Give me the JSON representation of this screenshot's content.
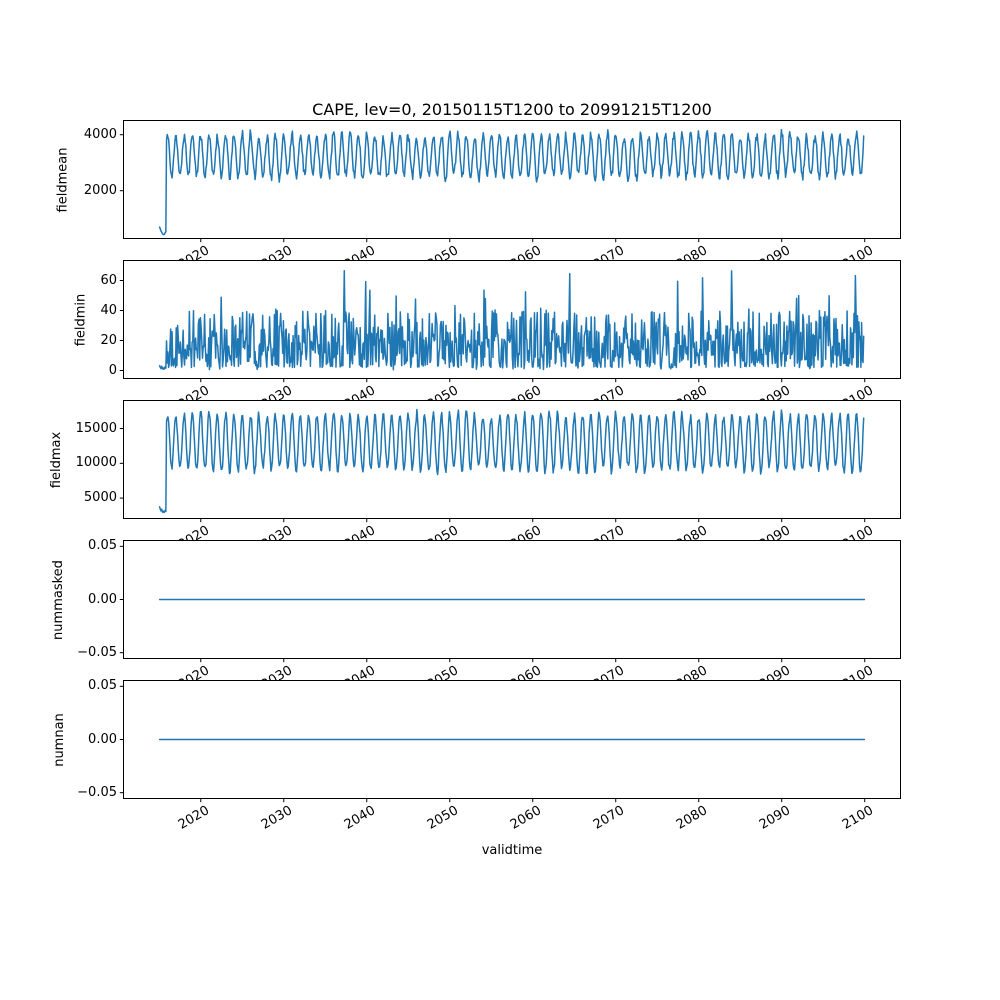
{
  "chart_data": {
    "type": "line",
    "title": "CAPE, lev=0, 20150115T1200 to 20991215T1200",
    "xlabel": "validtime",
    "line_color": "#1f77b4",
    "background_color": "#ffffff",
    "spine_color": "#000000",
    "x_start": 2015.042,
    "x_end": 2099.958,
    "xlim": [
      2010.75,
      2104.25
    ],
    "xticks": [
      2020,
      2030,
      2040,
      2050,
      2060,
      2070,
      2080,
      2090,
      2100
    ],
    "xtick_labels": [
      "2020",
      "2030",
      "2040",
      "2050",
      "2060",
      "2070",
      "2080",
      "2090",
      "2100"
    ],
    "xtick_rotation_deg": 30,
    "samples_per_year": 12,
    "grid": false,
    "legend": "none",
    "subplots": [
      {
        "name": "fieldmean",
        "ylabel": "fieldmean",
        "yticks": [
          2000,
          4000
        ],
        "ytick_labels": [
          "2000",
          "4000"
        ],
        "ylim": [
          310,
          4490
        ],
        "summary": "Annual oscillation between roughly 2450 and 4250 from 2016 to 2100, after an initial spin-up dip from ~700 down to ~430 during 2015",
        "intro_points": [
          [
            2015.042,
            700
          ],
          [
            2015.125,
            630
          ],
          [
            2015.208,
            560
          ],
          [
            2015.292,
            520
          ],
          [
            2015.375,
            470
          ],
          [
            2015.458,
            440
          ],
          [
            2015.542,
            430
          ],
          [
            2015.625,
            445
          ],
          [
            2015.708,
            500
          ],
          [
            2015.792,
            540
          ]
        ],
        "synth": {
          "kind": "seasonal",
          "seed": 11,
          "start": 2015.875,
          "end": 2099.958,
          "mid": 3250,
          "amp": 750,
          "amp_jitter": 0.1,
          "mid_jitter": 0.02,
          "noise": 150
        }
      },
      {
        "name": "fieldmin",
        "ylabel": "fieldmin",
        "yticks": [
          0,
          20,
          40,
          60
        ],
        "ytick_labels": [
          "0",
          "20",
          "40",
          "60"
        ],
        "ylim": [
          -5,
          73
        ],
        "summary": "Noisy monthly values mostly between 2 and 45 with sporadic spikes up to ~70; starts near 1-3 during 2015",
        "intro_points": [
          [
            2015.042,
            3.2
          ],
          [
            2015.125,
            2.1
          ],
          [
            2015.208,
            1.2
          ],
          [
            2015.292,
            2.8
          ],
          [
            2015.375,
            1.5
          ],
          [
            2015.458,
            0.8
          ],
          [
            2015.542,
            1.8
          ],
          [
            2015.625,
            1.0
          ],
          [
            2015.708,
            2.5
          ],
          [
            2015.792,
            1.6
          ]
        ],
        "synth": {
          "kind": "noisy",
          "seed": 22,
          "start": 2015.875,
          "end": 2099.958,
          "base": 2,
          "spread": 38,
          "spike_prob": 0.05,
          "spike_min": 10,
          "spike_max": 32,
          "dip_prob": 0.012,
          "max": 70
        }
      },
      {
        "name": "fieldmax",
        "ylabel": "fieldmax",
        "yticks": [
          5000,
          10000,
          15000
        ],
        "ytick_labels": [
          "5000",
          "10000",
          "15000"
        ],
        "ylim": [
          2140,
          18960
        ],
        "summary": "Annual oscillation between roughly 8700 and 18000 from 2016 to 2100, after an initial spin-up dip to ~2950 during 2015",
        "intro_points": [
          [
            2015.042,
            3750
          ],
          [
            2015.125,
            3400
          ],
          [
            2015.208,
            3150
          ],
          [
            2015.292,
            3420
          ],
          [
            2015.375,
            3050
          ],
          [
            2015.458,
            2920
          ],
          [
            2015.542,
            3120
          ],
          [
            2015.625,
            2980
          ],
          [
            2015.708,
            3250
          ],
          [
            2015.792,
            3100
          ]
        ],
        "synth": {
          "kind": "seasonal",
          "seed": 33,
          "start": 2015.875,
          "end": 2099.958,
          "mid": 13000,
          "amp": 3900,
          "amp_jitter": 0.1,
          "mid_jitter": 0.02,
          "noise": 480
        }
      },
      {
        "name": "nummasked",
        "ylabel": "nummasked",
        "yticks": [
          -0.05,
          0,
          0.05
        ],
        "ytick_labels": [
          "−0.05",
          "0.00",
          "0.05"
        ],
        "ylim": [
          -0.055,
          0.055
        ],
        "summary": "Constant 0 for the entire period 2015-2100",
        "values": [
          [
            2015.042,
            0
          ],
          [
            2099.958,
            0
          ]
        ]
      },
      {
        "name": "numnan",
        "ylabel": "numnan",
        "yticks": [
          -0.05,
          0,
          0.05
        ],
        "ytick_labels": [
          "−0.05",
          "0.00",
          "0.05"
        ],
        "ylim": [
          -0.055,
          0.055
        ],
        "summary": "Constant 0 for the entire period 2015-2100",
        "values": [
          [
            2015.042,
            0
          ],
          [
            2099.958,
            0
          ]
        ]
      }
    ]
  }
}
